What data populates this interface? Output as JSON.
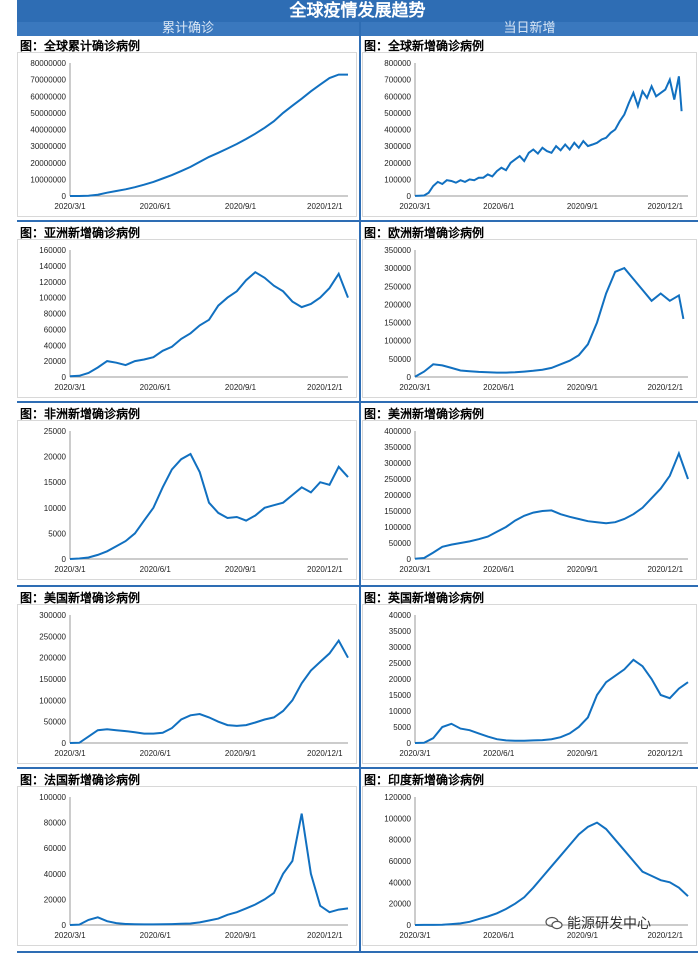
{
  "header": {
    "title": "全球疫情发展趋势",
    "left_section": "累计确诊",
    "right_section": "当日新增"
  },
  "watermark": {
    "text": "能源研发中心",
    "icon": "wechat-icon"
  },
  "colors": {
    "line": "#1170c0",
    "banner": "#2e6db4"
  },
  "chart_data": [
    {
      "id": "global-cum",
      "type": "line",
      "title": "图：全球累计确诊病例",
      "ylim": [
        0,
        80000000
      ],
      "yticks": [
        0,
        10000000,
        20000000,
        30000000,
        40000000,
        50000000,
        60000000,
        70000000,
        80000000
      ],
      "x": [
        0,
        10,
        20,
        30,
        40,
        50,
        60,
        70,
        80,
        90,
        100,
        110,
        120,
        130,
        140,
        150,
        160,
        170,
        180,
        190,
        200,
        210,
        220,
        230,
        240,
        250,
        260,
        270,
        280,
        290,
        300
      ],
      "values": [
        0,
        30000,
        100000,
        800000,
        2000000,
        3000000,
        4000000,
        5300000,
        6800000,
        8500000,
        10500000,
        12600000,
        15000000,
        17500000,
        20500000,
        23500000,
        26000000,
        28600000,
        31300000,
        34300000,
        37500000,
        41000000,
        45000000,
        50000000,
        54300000,
        58500000,
        63000000,
        67000000,
        71000000,
        73000000,
        73000000
      ],
      "xticks": [
        "2020/3/1",
        "2020/6/1",
        "2020/9/1",
        "2020/12/1"
      ]
    },
    {
      "id": "global-new",
      "type": "line",
      "title": "图：全球新增确诊病例",
      "ylim": [
        0,
        800000
      ],
      "yticks": [
        0,
        100000,
        200000,
        300000,
        400000,
        500000,
        600000,
        700000,
        800000
      ],
      "x": [
        0,
        5,
        10,
        15,
        20,
        25,
        30,
        35,
        40,
        45,
        50,
        55,
        60,
        65,
        70,
        75,
        80,
        85,
        90,
        95,
        100,
        105,
        110,
        115,
        120,
        125,
        130,
        135,
        140,
        145,
        150,
        155,
        160,
        165,
        170,
        175,
        180,
        185,
        190,
        195,
        200,
        205,
        210,
        215,
        220,
        225,
        230,
        235,
        240,
        245,
        250,
        255,
        260,
        265,
        270,
        275,
        280,
        285,
        290,
        293
      ],
      "values": [
        500,
        2000,
        3000,
        20000,
        60000,
        85000,
        72000,
        95000,
        90000,
        80000,
        95000,
        85000,
        100000,
        95000,
        110000,
        110000,
        130000,
        118000,
        150000,
        170000,
        155000,
        200000,
        220000,
        240000,
        210000,
        260000,
        280000,
        255000,
        290000,
        270000,
        260000,
        300000,
        275000,
        310000,
        280000,
        320000,
        290000,
        330000,
        300000,
        310000,
        320000,
        340000,
        350000,
        380000,
        400000,
        450000,
        490000,
        560000,
        620000,
        540000,
        630000,
        590000,
        660000,
        600000,
        620000,
        640000,
        700000,
        580000,
        720000,
        510000
      ],
      "xticks": [
        "2020/3/1",
        "2020/6/1",
        "2020/9/1",
        "2020/12/1"
      ]
    },
    {
      "id": "asia-new",
      "type": "line",
      "title": "图：亚洲新增确诊病例",
      "ylim": [
        0,
        160000
      ],
      "yticks": [
        0,
        20000,
        40000,
        60000,
        80000,
        100000,
        120000,
        140000,
        160000
      ],
      "x": [
        0,
        10,
        20,
        30,
        40,
        50,
        60,
        70,
        80,
        90,
        100,
        110,
        120,
        130,
        140,
        150,
        160,
        170,
        180,
        190,
        200,
        210,
        220,
        230,
        240,
        250,
        260,
        270,
        280,
        290,
        300
      ],
      "values": [
        1000,
        1500,
        5000,
        12000,
        20000,
        18000,
        15000,
        20000,
        22000,
        25000,
        33000,
        38000,
        48000,
        55000,
        65000,
        72000,
        90000,
        100000,
        108000,
        122000,
        132000,
        125000,
        115000,
        108000,
        95000,
        88000,
        92000,
        100000,
        112000,
        130000,
        100000
      ],
      "xticks": [
        "2020/3/1",
        "2020/6/1",
        "2020/9/1",
        "2020/12/1"
      ]
    },
    {
      "id": "europe-new",
      "type": "line",
      "title": "图：欧洲新增确诊病例",
      "ylim": [
        0,
        350000
      ],
      "yticks": [
        0,
        50000,
        100000,
        150000,
        200000,
        250000,
        300000,
        350000
      ],
      "x": [
        0,
        10,
        20,
        30,
        40,
        50,
        60,
        70,
        80,
        90,
        100,
        110,
        120,
        130,
        140,
        150,
        160,
        170,
        180,
        190,
        200,
        210,
        220,
        230,
        240,
        250,
        260,
        270,
        280,
        290,
        295
      ],
      "values": [
        500,
        15000,
        35000,
        32000,
        25000,
        18000,
        16000,
        14000,
        13000,
        12000,
        12000,
        13000,
        15000,
        17000,
        20000,
        25000,
        35000,
        45000,
        60000,
        90000,
        150000,
        230000,
        290000,
        300000,
        270000,
        240000,
        210000,
        230000,
        210000,
        225000,
        160000
      ],
      "xticks": [
        "2020/3/1",
        "2020/6/1",
        "2020/9/1",
        "2020/12/1"
      ]
    },
    {
      "id": "africa-new",
      "type": "line",
      "title": "图：非洲新增确诊病例",
      "ylim": [
        0,
        25000
      ],
      "yticks": [
        0,
        5000,
        10000,
        15000,
        20000,
        25000
      ],
      "x": [
        0,
        10,
        20,
        30,
        40,
        50,
        60,
        70,
        80,
        90,
        100,
        110,
        120,
        130,
        140,
        150,
        160,
        170,
        180,
        190,
        200,
        210,
        220,
        230,
        240,
        250,
        260,
        270,
        280,
        290,
        300
      ],
      "values": [
        0,
        100,
        300,
        800,
        1500,
        2500,
        3500,
        5000,
        7500,
        10000,
        14000,
        17500,
        19500,
        20500,
        17000,
        11000,
        9000,
        8000,
        8200,
        7500,
        8500,
        10000,
        10500,
        11000,
        12500,
        14000,
        13000,
        15000,
        14500,
        18000,
        16000
      ],
      "xticks": [
        "2020/3/1",
        "2020/6/1",
        "2020/9/1",
        "2020/12/1"
      ]
    },
    {
      "id": "america-new",
      "type": "line",
      "title": "图：美洲新增确诊病例",
      "ylim": [
        0,
        400000
      ],
      "yticks": [
        0,
        50000,
        100000,
        150000,
        200000,
        250000,
        300000,
        350000,
        400000
      ],
      "x": [
        0,
        10,
        20,
        30,
        40,
        50,
        60,
        70,
        80,
        90,
        100,
        110,
        120,
        130,
        140,
        150,
        160,
        170,
        180,
        190,
        200,
        210,
        220,
        230,
        240,
        250,
        260,
        270,
        280,
        290,
        300
      ],
      "values": [
        500,
        3000,
        20000,
        38000,
        45000,
        50000,
        55000,
        62000,
        70000,
        85000,
        100000,
        120000,
        135000,
        145000,
        150000,
        152000,
        140000,
        132000,
        125000,
        118000,
        115000,
        112000,
        115000,
        125000,
        140000,
        160000,
        190000,
        220000,
        260000,
        330000,
        250000
      ],
      "xticks": [
        "2020/3/1",
        "2020/6/1",
        "2020/9/1",
        "2020/12/1"
      ]
    },
    {
      "id": "us-new",
      "type": "line",
      "title": "图：美国新增确诊病例",
      "ylim": [
        0,
        300000
      ],
      "yticks": [
        0,
        50000,
        100000,
        150000,
        200000,
        250000,
        300000
      ],
      "x": [
        0,
        10,
        20,
        30,
        40,
        50,
        60,
        70,
        80,
        90,
        100,
        110,
        120,
        130,
        140,
        150,
        160,
        170,
        180,
        190,
        200,
        210,
        220,
        230,
        240,
        250,
        260,
        270,
        280,
        290,
        300
      ],
      "values": [
        0,
        500,
        15000,
        30000,
        32000,
        30000,
        28000,
        25000,
        22000,
        22000,
        24000,
        35000,
        55000,
        65000,
        68000,
        60000,
        50000,
        42000,
        40000,
        42000,
        48000,
        55000,
        60000,
        75000,
        100000,
        140000,
        170000,
        190000,
        210000,
        240000,
        200000
      ],
      "xticks": [
        "2020/3/1",
        "2020/6/1",
        "2020/9/1",
        "2020/12/1"
      ]
    },
    {
      "id": "uk-new",
      "type": "line",
      "title": "图：英国新增确诊病例",
      "ylim": [
        0,
        40000
      ],
      "yticks": [
        0,
        5000,
        10000,
        15000,
        20000,
        25000,
        30000,
        35000,
        40000
      ],
      "x": [
        0,
        10,
        20,
        30,
        40,
        50,
        60,
        70,
        80,
        90,
        100,
        110,
        120,
        130,
        140,
        150,
        160,
        170,
        180,
        190,
        200,
        210,
        220,
        230,
        240,
        250,
        260,
        270,
        280,
        290,
        300
      ],
      "values": [
        0,
        50,
        1500,
        5000,
        6000,
        4500,
        4000,
        3000,
        2000,
        1200,
        800,
        700,
        700,
        800,
        900,
        1200,
        1800,
        3000,
        5000,
        8000,
        15000,
        19000,
        21000,
        23000,
        26000,
        24000,
        20000,
        15000,
        14000,
        17000,
        19000
      ],
      "xticks": [
        "2020/3/1",
        "2020/6/1",
        "2020/9/1",
        "2020/12/1"
      ]
    },
    {
      "id": "france-new",
      "type": "line",
      "title": "图：法国新增确诊病例",
      "ylim": [
        0,
        100000
      ],
      "yticks": [
        0,
        20000,
        40000,
        60000,
        80000,
        100000
      ],
      "x": [
        0,
        10,
        20,
        30,
        40,
        50,
        60,
        70,
        80,
        90,
        100,
        110,
        120,
        130,
        140,
        150,
        160,
        170,
        180,
        190,
        200,
        210,
        220,
        230,
        240,
        250,
        260,
        270,
        280,
        290,
        300
      ],
      "values": [
        0,
        300,
        4000,
        6000,
        3000,
        1500,
        800,
        600,
        500,
        500,
        600,
        700,
        900,
        1200,
        2000,
        3500,
        5000,
        8000,
        10000,
        13000,
        16000,
        20000,
        25000,
        40000,
        50000,
        87000,
        40000,
        15000,
        10000,
        12000,
        13000
      ],
      "xticks": [
        "2020/3/1",
        "2020/6/1",
        "2020/9/1",
        "2020/12/1"
      ]
    },
    {
      "id": "india-new",
      "type": "line",
      "title": "图：印度新增确诊病例",
      "ylim": [
        0,
        120000
      ],
      "yticks": [
        0,
        20000,
        40000,
        60000,
        80000,
        100000,
        120000
      ],
      "x": [
        0,
        10,
        20,
        30,
        40,
        50,
        60,
        70,
        80,
        90,
        100,
        110,
        120,
        130,
        140,
        150,
        160,
        170,
        180,
        190,
        200,
        210,
        220,
        230,
        240,
        250,
        260,
        270,
        280,
        290,
        300
      ],
      "values": [
        0,
        50,
        100,
        300,
        800,
        1500,
        3000,
        5500,
        8000,
        11000,
        15000,
        20000,
        26000,
        35000,
        45000,
        55000,
        65000,
        75000,
        85000,
        92000,
        96000,
        90000,
        80000,
        70000,
        60000,
        50000,
        46000,
        42000,
        40000,
        35000,
        27000
      ],
      "xticks": [
        "2020/3/1",
        "2020/6/1",
        "2020/9/1",
        "2020/12/1"
      ]
    }
  ]
}
